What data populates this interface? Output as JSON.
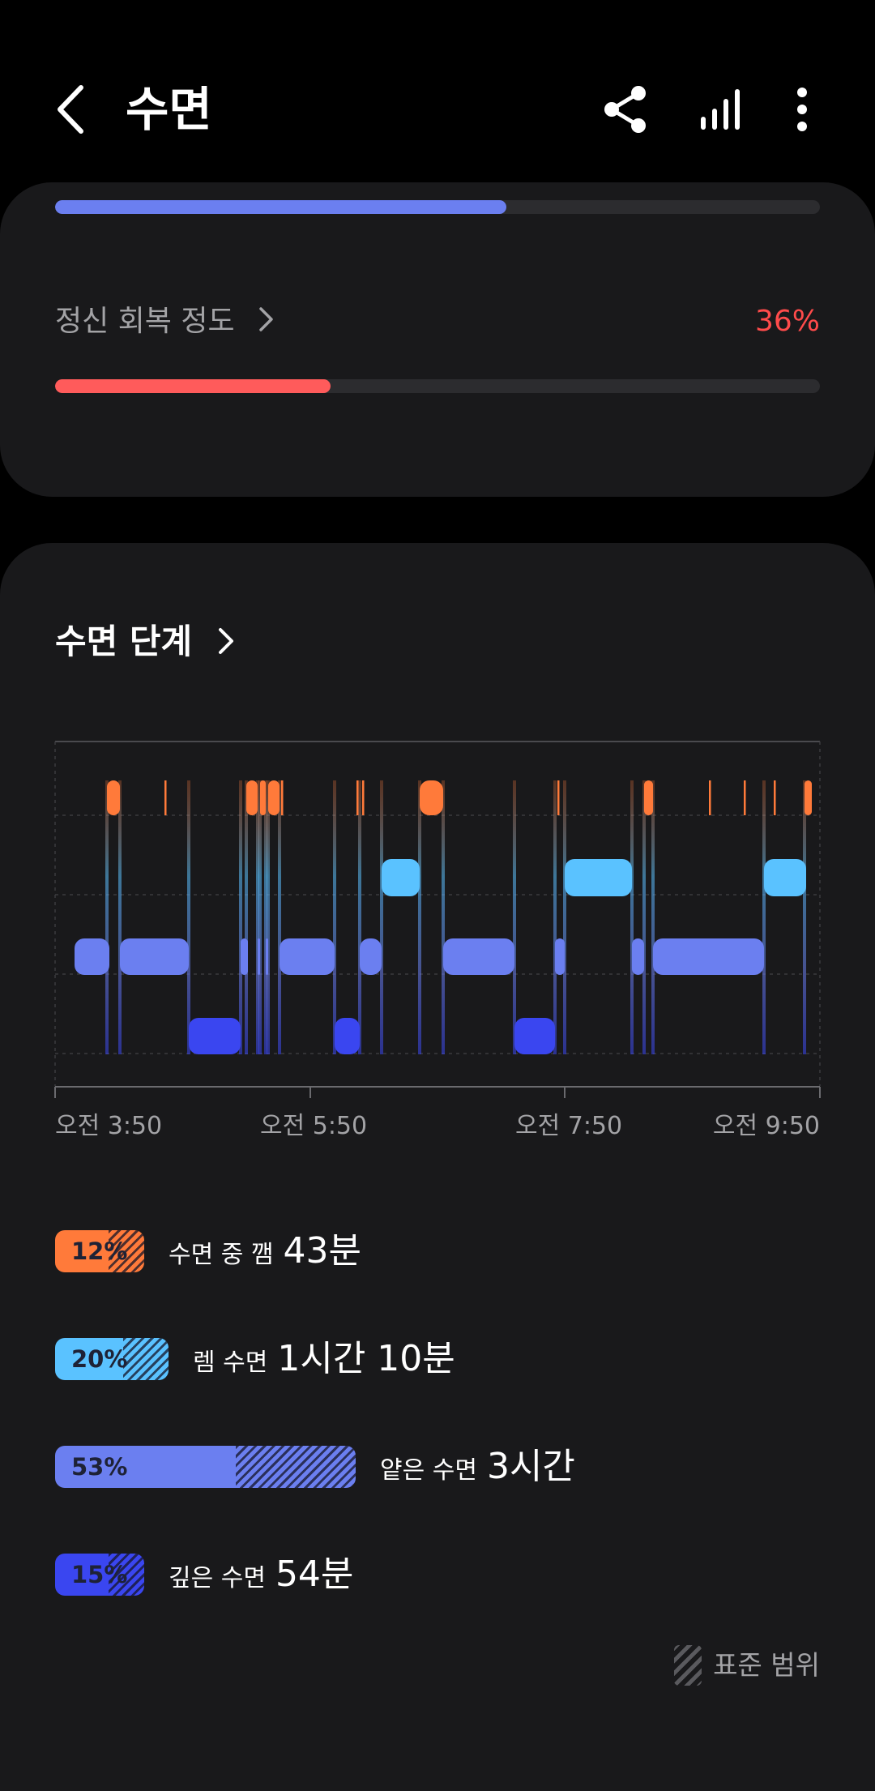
{
  "header": {
    "title": "수면"
  },
  "recovery": {
    "label": "정신 회복 정도",
    "value": "36%",
    "fraction": 0.36,
    "top_bar_fraction": 0.59,
    "top_bar_color": "#6b7ff0",
    "bar_color": "#ff5b5b"
  },
  "stages_section": {
    "title": "수면 단계",
    "x_ticks": [
      "오전 3:50",
      "오전 5:50",
      "오전 7:50",
      "오전 9:50"
    ],
    "stages": [
      {
        "pct": "12%",
        "label": "수면 중 깸",
        "value": "43분",
        "color": "#ff7a3a",
        "fraction": 0.12
      },
      {
        "pct": "20%",
        "label": "렘 수면",
        "value": "1시간 10분",
        "color": "#5ac2ff",
        "fraction": 0.2
      },
      {
        "pct": "53%",
        "label": "얕은 수면",
        "value": "3시간",
        "color": "#6b7ff0",
        "fraction": 0.53
      },
      {
        "pct": "15%",
        "label": "깊은 수면",
        "value": "54분",
        "color": "#3a46f0",
        "fraction": 0.15
      }
    ],
    "legend": "표준 범위"
  },
  "colors": {
    "awake": "#ff7a3a",
    "rem": "#5ac2ff",
    "light": "#6b7ff0",
    "deep": "#3a46f0",
    "card": "#19191b"
  }
}
